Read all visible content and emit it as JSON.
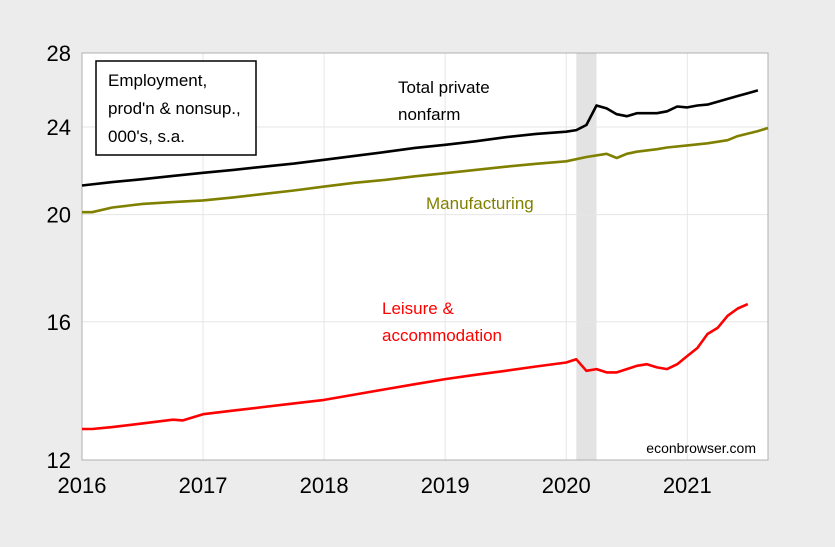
{
  "chart_data": {
    "type": "line",
    "title": "",
    "xlabel": "",
    "ylabel": "",
    "y_scale": "log",
    "xlim": [
      "2016-01",
      "2021-09"
    ],
    "ylim": [
      12,
      28
    ],
    "x_ticks": [
      {
        "label": "2016",
        "at": "2016-01"
      },
      {
        "label": "2017",
        "at": "2017-01"
      },
      {
        "label": "2018",
        "at": "2018-01"
      },
      {
        "label": "2019",
        "at": "2019-01"
      },
      {
        "label": "2020",
        "at": "2020-01"
      },
      {
        "label": "2021",
        "at": "2021-01"
      }
    ],
    "y_ticks": [
      {
        "label": "12",
        "at": 12
      },
      {
        "label": "16",
        "at": 16
      },
      {
        "label": "20",
        "at": 20
      },
      {
        "label": "24",
        "at": 24
      },
      {
        "label": "28",
        "at": 28
      }
    ],
    "grid": true,
    "recession_shading": {
      "from": "2020-02",
      "to": "2020-04",
      "color": "#e3e3e3"
    },
    "legend_box": {
      "lines": [
        "Employment,",
        "prod'n & nonsup.,",
        "000's, s.a."
      ],
      "placement": "top-left"
    },
    "watermark": "econbrowser.com",
    "series": [
      {
        "name": "Total private nonfarm",
        "label_lines": [
          "Total private",
          "nonfarm"
        ],
        "color": "#000000",
        "points": [
          [
            "2016-01",
            21.25
          ],
          [
            "2016-04",
            21.4
          ],
          [
            "2016-07",
            21.53
          ],
          [
            "2016-10",
            21.68
          ],
          [
            "2017-01",
            21.82
          ],
          [
            "2017-04",
            21.95
          ],
          [
            "2017-07",
            22.1
          ],
          [
            "2017-10",
            22.24
          ],
          [
            "2018-01",
            22.42
          ],
          [
            "2018-04",
            22.6
          ],
          [
            "2018-07",
            22.78
          ],
          [
            "2018-10",
            22.98
          ],
          [
            "2019-01",
            23.13
          ],
          [
            "2019-04",
            23.3
          ],
          [
            "2019-07",
            23.5
          ],
          [
            "2019-10",
            23.66
          ],
          [
            "2020-01",
            23.77
          ],
          [
            "2020-02",
            23.85
          ],
          [
            "2020-03",
            24.1
          ],
          [
            "2020-04",
            25.1
          ],
          [
            "2020-05",
            24.95
          ],
          [
            "2020-06",
            24.65
          ],
          [
            "2020-07",
            24.55
          ],
          [
            "2020-08",
            24.7
          ],
          [
            "2020-10",
            24.7
          ],
          [
            "2020-11",
            24.8
          ],
          [
            "2020-12",
            25.05
          ],
          [
            "2021-01",
            25.0
          ],
          [
            "2021-02",
            25.1
          ],
          [
            "2021-03",
            25.15
          ],
          [
            "2021-04",
            25.3
          ],
          [
            "2021-05",
            25.45
          ],
          [
            "2021-06",
            25.6
          ],
          [
            "2021-07",
            25.75
          ],
          [
            "2021-08",
            25.9
          ]
        ]
      },
      {
        "name": "Manufacturing",
        "label_lines": [
          "Manufacturing"
        ],
        "color": "#808000",
        "points": [
          [
            "2016-01",
            20.1
          ],
          [
            "2016-02",
            20.1
          ],
          [
            "2016-04",
            20.3
          ],
          [
            "2016-07",
            20.45
          ],
          [
            "2016-10",
            20.53
          ],
          [
            "2017-01",
            20.6
          ],
          [
            "2017-04",
            20.73
          ],
          [
            "2017-07",
            20.88
          ],
          [
            "2017-10",
            21.03
          ],
          [
            "2018-01",
            21.2
          ],
          [
            "2018-04",
            21.37
          ],
          [
            "2018-07",
            21.5
          ],
          [
            "2018-10",
            21.66
          ],
          [
            "2019-01",
            21.8
          ],
          [
            "2019-04",
            21.95
          ],
          [
            "2019-07",
            22.1
          ],
          [
            "2019-10",
            22.23
          ],
          [
            "2020-01",
            22.35
          ],
          [
            "2020-03",
            22.55
          ],
          [
            "2020-05",
            22.7
          ],
          [
            "2020-06",
            22.5
          ],
          [
            "2020-07",
            22.7
          ],
          [
            "2020-08",
            22.8
          ],
          [
            "2020-10",
            22.92
          ],
          [
            "2020-11",
            23.0
          ],
          [
            "2021-01",
            23.1
          ],
          [
            "2021-03",
            23.2
          ],
          [
            "2021-05",
            23.35
          ],
          [
            "2021-06",
            23.55
          ],
          [
            "2021-08",
            23.8
          ],
          [
            "2021-09",
            23.95
          ]
        ]
      },
      {
        "name": "Leisure & accommodation",
        "label_lines": [
          "Leisure &",
          "accommodation"
        ],
        "color": "#ff0000",
        "points": [
          [
            "2016-01",
            12.8
          ],
          [
            "2016-02",
            12.8
          ],
          [
            "2016-04",
            12.85
          ],
          [
            "2016-07",
            12.95
          ],
          [
            "2016-10",
            13.05
          ],
          [
            "2016-11",
            13.03
          ],
          [
            "2017-01",
            13.2
          ],
          [
            "2017-04",
            13.3
          ],
          [
            "2017-07",
            13.4
          ],
          [
            "2017-10",
            13.5
          ],
          [
            "2018-01",
            13.6
          ],
          [
            "2018-04",
            13.75
          ],
          [
            "2018-07",
            13.9
          ],
          [
            "2018-10",
            14.05
          ],
          [
            "2019-01",
            14.2
          ],
          [
            "2019-04",
            14.33
          ],
          [
            "2019-07",
            14.45
          ],
          [
            "2019-10",
            14.58
          ],
          [
            "2020-01",
            14.7
          ],
          [
            "2020-02",
            14.8
          ],
          [
            "2020-03",
            14.45
          ],
          [
            "2020-04",
            14.5
          ],
          [
            "2020-05",
            14.4
          ],
          [
            "2020-06",
            14.4
          ],
          [
            "2020-07",
            14.5
          ],
          [
            "2020-08",
            14.6
          ],
          [
            "2020-09",
            14.65
          ],
          [
            "2020-10",
            14.55
          ],
          [
            "2020-11",
            14.5
          ],
          [
            "2020-12",
            14.65
          ],
          [
            "2021-01",
            14.9
          ],
          [
            "2021-02",
            15.15
          ],
          [
            "2021-03",
            15.6
          ],
          [
            "2021-04",
            15.8
          ],
          [
            "2021-05",
            16.2
          ],
          [
            "2021-06",
            16.45
          ],
          [
            "2021-07",
            16.6
          ]
        ]
      }
    ]
  }
}
